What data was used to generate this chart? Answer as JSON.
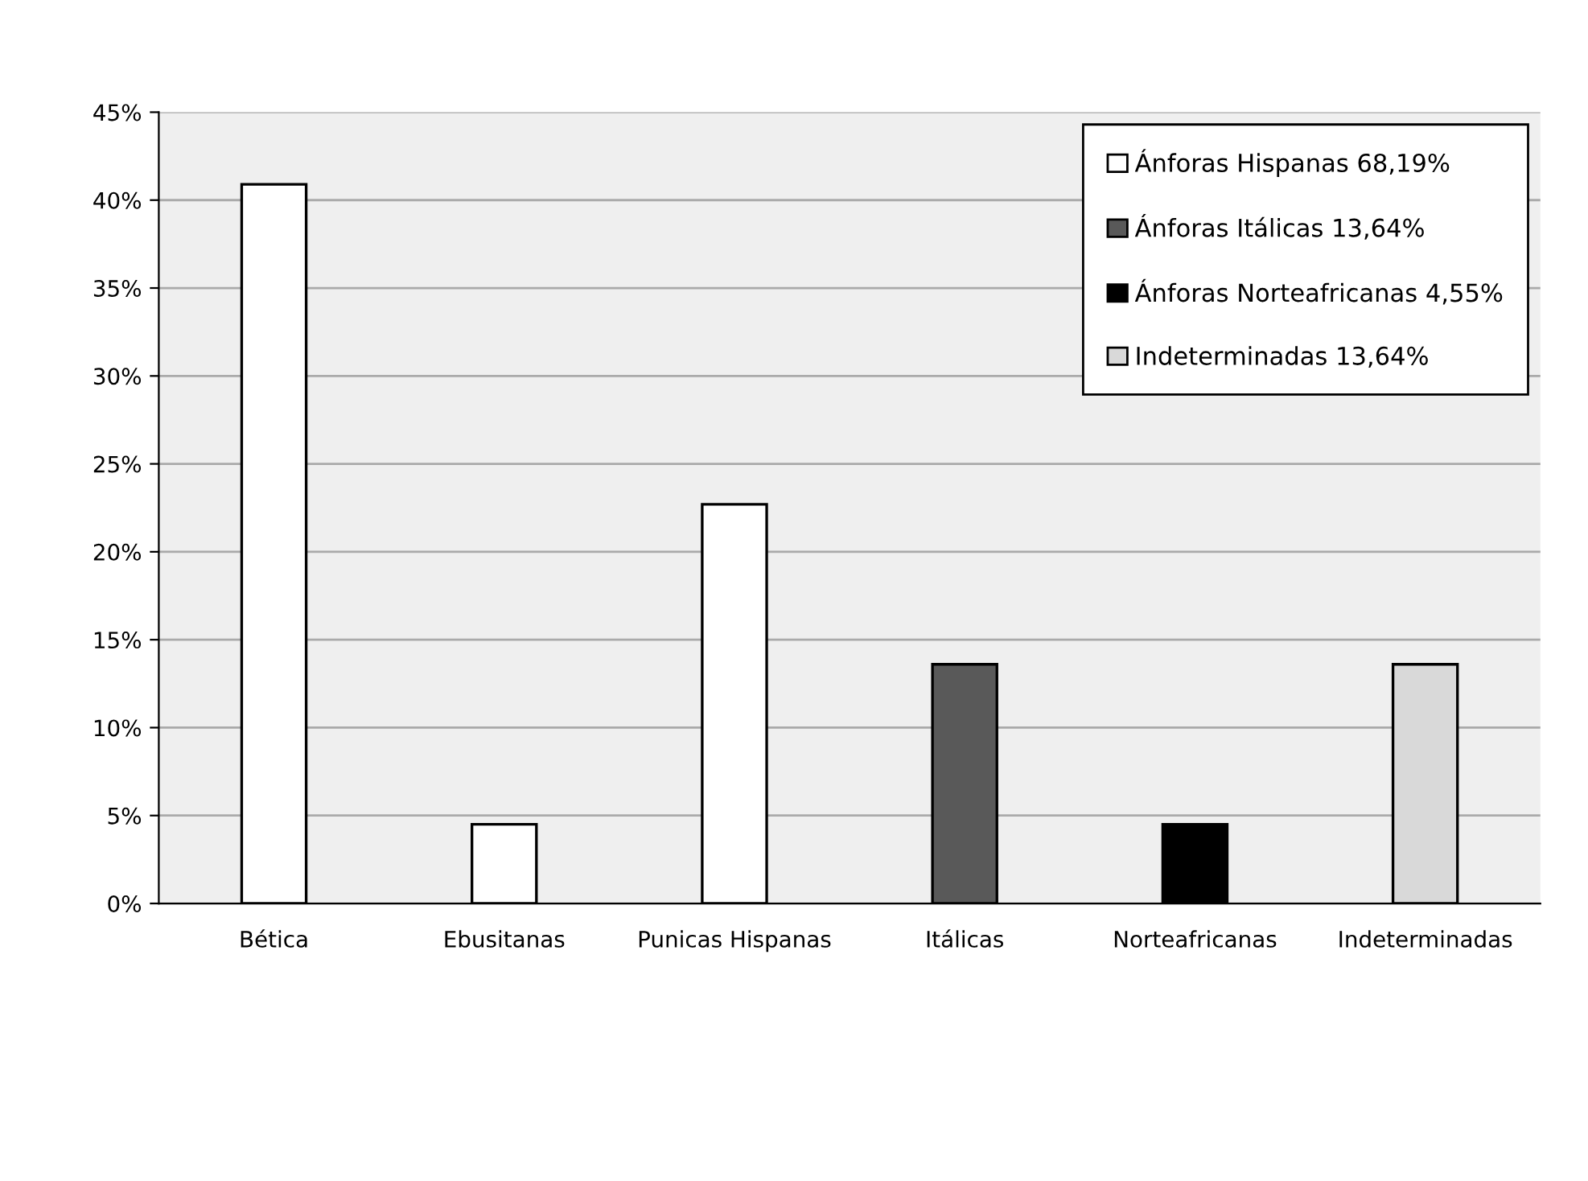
{
  "chart_data": {
    "type": "bar",
    "stacked": true,
    "categories": [
      "Bética",
      "Ebusitanas",
      "Punicas Hispanas",
      "Itálicas",
      "Norteafricanas",
      "Indeterminadas"
    ],
    "series": [
      {
        "name": "Ánforas Hispanas 68,19%",
        "color": "#ffffff",
        "values": [
          40.9,
          4.5,
          22.7,
          null,
          null,
          null
        ]
      },
      {
        "name": "Ánforas Itálicas 13,64%",
        "color": "#595959",
        "values": [
          null,
          null,
          null,
          13.6,
          null,
          null
        ]
      },
      {
        "name": "Ánforas Norteafricanas 4,55%",
        "color": "#000000",
        "values": [
          null,
          null,
          null,
          null,
          4.5,
          null
        ]
      },
      {
        "name": "Indeterminadas 13,64%",
        "color": "#d9d9d9",
        "values": [
          null,
          null,
          null,
          null,
          null,
          13.6
        ]
      }
    ],
    "ylim": [
      0,
      45
    ],
    "yticks": [
      {
        "value": 0,
        "label": "0%"
      },
      {
        "value": 5,
        "label": "5%"
      },
      {
        "value": 10,
        "label": "10%"
      },
      {
        "value": 15,
        "label": "15%"
      },
      {
        "value": 20,
        "label": "20%"
      },
      {
        "value": 25,
        "label": "25%"
      },
      {
        "value": 30,
        "label": "30%"
      },
      {
        "value": 35,
        "label": "35%"
      },
      {
        "value": 40,
        "label": "40%"
      },
      {
        "value": 45,
        "label": "45%"
      }
    ],
    "grid": "y",
    "legend": "top right"
  }
}
